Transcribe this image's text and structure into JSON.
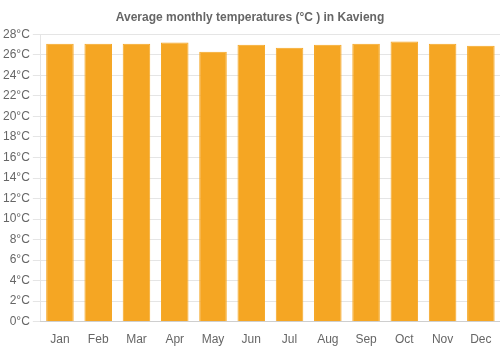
{
  "chart_data": {
    "type": "bar",
    "title": "Average monthly temperatures (°C ) in Kavieng",
    "categories": [
      "Jan",
      "Feb",
      "Mar",
      "Apr",
      "May",
      "Jun",
      "Jul",
      "Aug",
      "Sep",
      "Oct",
      "Nov",
      "Dec"
    ],
    "values": [
      27.1,
      27.1,
      27.1,
      27.2,
      26.3,
      27.0,
      26.7,
      27.0,
      27.1,
      27.3,
      27.1,
      26.9
    ],
    "color": "#F5A623",
    "ylim": [
      0,
      28
    ],
    "yticks": [
      {
        "value": 0,
        "label": "0°C"
      },
      {
        "value": 2,
        "label": "2°C"
      },
      {
        "value": 4,
        "label": "4°C"
      },
      {
        "value": 6,
        "label": "6°C"
      },
      {
        "value": 8,
        "label": "8°C"
      },
      {
        "value": 10,
        "label": "10°C"
      },
      {
        "value": 12,
        "label": "12°C"
      },
      {
        "value": 14,
        "label": "14°C"
      },
      {
        "value": 16,
        "label": "16°C"
      },
      {
        "value": 18,
        "label": "18°C"
      },
      {
        "value": 20,
        "label": "20°C"
      },
      {
        "value": 22,
        "label": "22°C"
      },
      {
        "value": 24,
        "label": "24°C"
      },
      {
        "value": 26,
        "label": "26°C"
      },
      {
        "value": 28,
        "label": "28°C"
      }
    ],
    "grid": true
  }
}
